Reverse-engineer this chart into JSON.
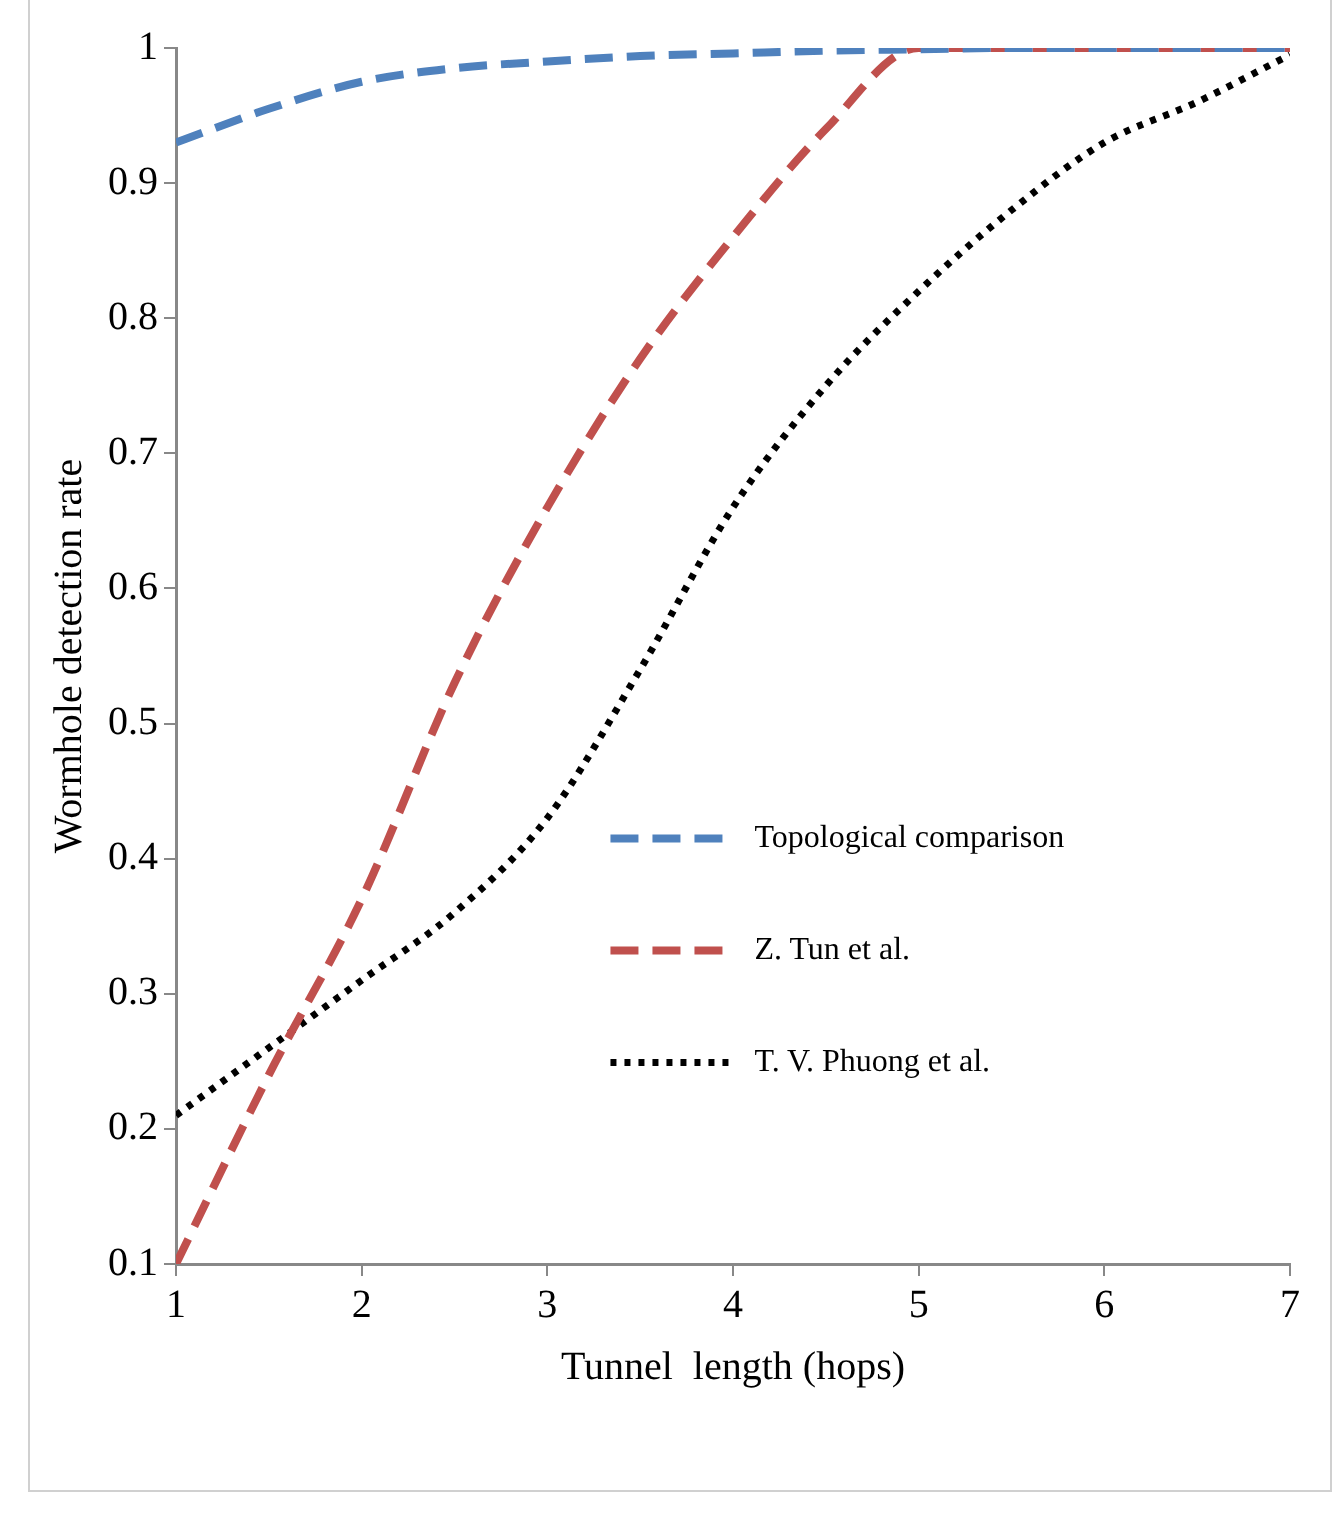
{
  "chart_data": {
    "type": "line",
    "xlabel": "Tunnel  length (hops)",
    "ylabel": "Wormhole detection rate",
    "x": [
      1,
      1.5,
      2,
      2.5,
      3,
      3.5,
      4,
      4.5,
      5,
      5.5,
      6,
      6.5,
      7
    ],
    "xlim": [
      1,
      7
    ],
    "xticks": [
      1,
      2,
      3,
      4,
      5,
      6,
      7
    ],
    "ylim": [
      0.1,
      1
    ],
    "yticks": [
      0.1,
      0.2,
      0.3,
      0.4,
      0.5,
      0.6,
      0.7,
      0.8,
      0.9,
      1
    ],
    "grid": false,
    "legend": "right",
    "marker": "none",
    "series": [
      {
        "name": "Topological comparison",
        "color": "#4f81bd",
        "line_style": "dashed",
        "values": [
          0.93,
          0.955,
          0.975,
          0.985,
          0.99,
          0.994,
          0.996,
          0.998,
          0.999,
          1,
          1,
          1,
          1
        ]
      },
      {
        "name": "Z. Tun et al.",
        "color": "#c0504d",
        "line_style": "dashed",
        "values": [
          0.1,
          0.24,
          0.37,
          0.53,
          0.66,
          0.77,
          0.86,
          0.94,
          1,
          1,
          1,
          1,
          1
        ]
      },
      {
        "name": "T. V. Phuong et al.",
        "color": "#000000",
        "line_style": "dotted",
        "values": [
          0.21,
          0.26,
          0.31,
          0.36,
          0.43,
          0.54,
          0.66,
          0.75,
          0.82,
          0.88,
          0.93,
          0.96,
          0.995
        ]
      }
    ]
  }
}
